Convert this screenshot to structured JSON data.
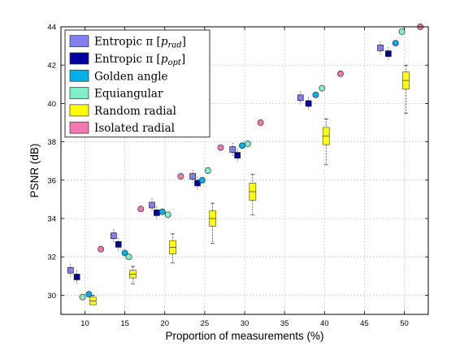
{
  "chart_data": {
    "type": "scatter",
    "title": "",
    "xlabel": "Proportion of measurements (%)",
    "ylabel": "PSNR (dB)",
    "xlim": [
      7,
      53
    ],
    "ylim": [
      29,
      44
    ],
    "xticks": [
      "10",
      "15",
      "20",
      "25",
      "30",
      "35",
      "40",
      "45",
      "50"
    ],
    "xtick_values": [
      10,
      15,
      20,
      25,
      30,
      35,
      40,
      45,
      50
    ],
    "yticks": [
      "30",
      "32",
      "34",
      "36",
      "38",
      "40",
      "42",
      "44"
    ],
    "ytick_values": [
      30,
      32,
      34,
      36,
      38,
      40,
      42,
      44
    ],
    "grid": true,
    "legend_position": "top-left",
    "series": [
      {
        "name": "Entropic π [p_rad]",
        "legend_parts": [
          "Entropic π [",
          "p",
          "rad",
          "]"
        ],
        "marker": "square",
        "color": "#8080f0",
        "x": [
          8.2,
          13.6,
          18.4,
          23.5,
          28.5,
          37.0,
          47.0
        ],
        "y": [
          31.3,
          33.1,
          34.7,
          36.2,
          37.6,
          40.3,
          42.9
        ]
      },
      {
        "name": "Entropic π [p_opt]",
        "legend_parts": [
          "Entropic π [",
          "p",
          "opt",
          "]"
        ],
        "marker": "square",
        "color": "#0000a0",
        "x": [
          9.0,
          14.2,
          19.0,
          24.1,
          29.1,
          38.0,
          48.0
        ],
        "y": [
          30.95,
          32.65,
          34.3,
          35.85,
          37.3,
          40.0,
          42.6
        ]
      },
      {
        "name": "Golden angle",
        "legend_parts": [
          "Golden angle"
        ],
        "marker": "circle",
        "color": "#00b0e8",
        "x": [
          10.5,
          15.0,
          19.7,
          24.7,
          29.7,
          38.9,
          48.9
        ],
        "y": [
          30.05,
          32.2,
          34.35,
          36.0,
          37.8,
          40.45,
          43.15
        ]
      },
      {
        "name": "Equiangular",
        "legend_parts": [
          "Equiangular"
        ],
        "marker": "circle",
        "color": "#80f0c8",
        "x": [
          9.7,
          15.5,
          20.4,
          25.4,
          30.4,
          39.7,
          49.7
        ],
        "y": [
          29.9,
          32.0,
          34.2,
          36.5,
          37.9,
          40.8,
          43.75
        ]
      },
      {
        "name": "Random radial",
        "legend_parts": [
          "Random radial"
        ],
        "marker": "box",
        "color": "#ffff00",
        "x": [
          11.0,
          16.0,
          21.0,
          26.0,
          31.0,
          40.2,
          50.2
        ],
        "y": [
          29.7,
          31.1,
          32.5,
          34.0,
          35.4,
          38.3,
          41.2
        ],
        "box_half_height": [
          0.2,
          0.2,
          0.35,
          0.4,
          0.45,
          0.45,
          0.45
        ],
        "whisker_low": [
          29.5,
          30.6,
          31.7,
          32.7,
          34.2,
          36.8,
          39.5
        ],
        "whisker_high": [
          30.0,
          31.5,
          33.2,
          34.8,
          36.3,
          39.2,
          42.0
        ]
      },
      {
        "name": "Isolated radial",
        "legend_parts": [
          "Isolated radial"
        ],
        "marker": "circle",
        "color": "#f07ab0",
        "x": [
          12.0,
          17.0,
          22.0,
          27.0,
          32.0,
          42.0,
          52.0
        ],
        "y": [
          32.4,
          34.5,
          36.2,
          37.7,
          39.0,
          41.55,
          44.0
        ]
      }
    ]
  }
}
